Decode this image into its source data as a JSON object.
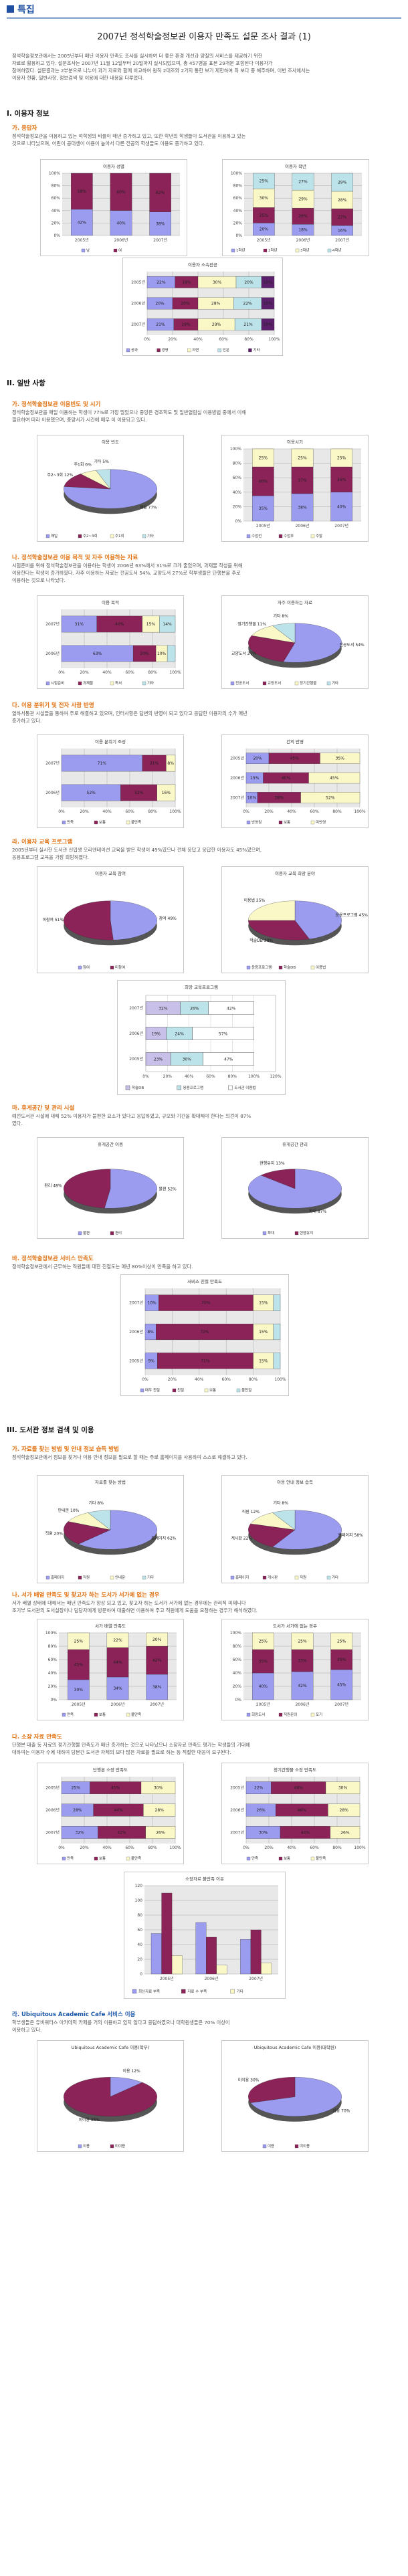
{
  "header": {
    "label": "특집",
    "color": "#1e4fa0"
  },
  "title": "2007년 정석학술정보관 이용자 만족도 설문 조사 결과 (1)",
  "intro": [
    "정석학술정보관에서는 2005년부터 매년 이용자 만족도 조사를 실시하여 더 좋은 환경 개선과 양질의 서비스를 제공하기 위한",
    "자료로 활용하고 있다. 설문조사는 2007년 11월 12일부터 20일까지 실시되었으며, 총 457명을 표본 29개문 포함된다 이용자가",
    "참여하였다. 설문결과는 2부분으로 나누어 과거 자료와 함께 비교하여 원칙 2대조와 2가지 통한 보기 제한하여 최 보다 중 해주하며, 이번 조사에서는",
    "이용자 현황, 일반사항, 정보검색 및 이용에 대한 내용을 다루었다."
  ],
  "sections": [
    {
      "title": "I. 이용자 정보",
      "subs": [
        {
          "title": "가. 응답자",
          "text": [
            "정석학술정보관을 이용하고 있는 여학생의 비율이 매년 증가하고 있고, 또한 학년의 학생들이 도서관을 이용하고 있는",
            "것으로 나타났으며, 어린이 공대생이 이용이 높아서 다른 전공의 학생들도 이용도 증가하고 있다."
          ]
        }
      ]
    },
    {
      "title": "II. 일반 사항",
      "subs": [
        {
          "title": "가. 정석학술정보관 이용빈도 및 시기",
          "text": [
            "정석학술정보관을 매일 이용하는 학생이 77%로 가장 많았으나 중앙은 경조학도 및 일반열람실 이용방법 중에서 이해",
            "필요하여 따라 이용했으며, 중앙서가 시간에 매우 이 이용되고 있다."
          ]
        },
        {
          "title": "나. 정석학술정보관 이용 목적 및 자주 이용하는 자료",
          "text": [
            "시험준비를 위해 정석학술정보관을 이용하는 학생이 2006년 63%에서 31%로 크게 줄었으며, 과제물 작성을 위해",
            "이용한다는 학생이 증가하였다. 자주 이용하는 자료는 전공도서 54%, 교양도서 27%로 학부생들은 단행본을 주로",
            "이용하는 것으로 나타났다."
          ]
        },
        {
          "title": "다. 이용 분위기 및 전자 사람 반영",
          "text": [
            "열하서통관 시설들을 통하여 주로 해결하고 있으며, 인터사항은 답변의 반영이 되고 있다고 응답한 이용자의 수가 매년",
            "증가하고 있다."
          ]
        },
        {
          "title": "라. 이용자 교육 프로그램",
          "text": [
            "2005년부터 실시한 도서관 신입생 오리엔테이션 교육을 받은 학생이 49%였으나 전체 응답고 응답한 이용자도 45%였으며,",
            "응용프로그램 교육을 가장 희망하였다."
          ]
        },
        {
          "title": "마. 휴게공간 및 관리 시설",
          "text": [
            "예전도서관 시설에 대해 52% 이용자가 불편한 요소가 있다고 응답하였고, 규모와 기간을 확대해야 한다는 의견이 87%",
            "였다."
          ]
        },
        {
          "title": "바. 정석학술정보관 서비스 만족도",
          "text": [
            "정석학술정보관에서 근무하는 직원들에 대한 친절도는 매년 80%이상이 만족을 하고 있다."
          ]
        }
      ]
    },
    {
      "title": "III. 도서관 정보 검색 및 이용",
      "subs": [
        {
          "title": "가. 자료를 찾는 방법 및 안내 정보 습득 방법",
          "text": [
            "정석학술정보관에서 정보를 찾거나 이용 안내 정보를 필요로 할 때는 주로 홈페이지를 사용하여 스스로 해결하고 있다."
          ]
        },
        {
          "title": "나. 서가 배열 만족도 및 찾고자 하는 도서가 서가에 없는 경우",
          "text": [
            "서가 배열 상태에 대해서는 매년 만족도가 향상 되고 있고, 찾고자 하는 도서가 서가에 없는 경우에는 관리직 미제니다",
            "조기부 도서관의 도서실장이나 담당자에게 방문하여 대출하면 이용하여 주고 직원에게 도움을 요청하는 경우가 해석하였다."
          ]
        },
        {
          "title": "다. 소장 자료 만족도",
          "text": [
            "단행본 대출 등 자료의 정기간행물 만족도가 매년 증가하는 것으로 나타났으나 소장자료 만족도 평가는 학생들의 기대에",
            "대하여는 이용자 수에 대하여 당분간 도서관 자체의 보다 많은 자료를 필요로 하는 등 적절한 대응이 요구된다."
          ]
        },
        {
          "title": "라. Ubiquitous Academic Cafe 서비스 이용",
          "text": [
            "학부생들은 유비쿼터스 아카데믹 카페를 거의 이용하고 있지 않다고 응답하였으나 대학원생들은 70% 이상이",
            "이용하고 있다."
          ]
        }
      ]
    }
  ],
  "charts": {
    "c1": {
      "title": "이용자 성별",
      "ylabels": [
        "100%",
        "80%",
        "60%",
        "40%",
        "20%",
        "0%"
      ]
    },
    "c2": {
      "title": "이용자 학년",
      "ylabels": [
        "100%",
        "80%",
        "60%",
        "40%",
        "20%",
        "0%"
      ]
    },
    "c3": {
      "title": "이용자 소속전공"
    },
    "c4": {
      "title": "이용 빈도"
    },
    "c5": {
      "title": "이용시기"
    },
    "c6": {
      "title": "이용 목적"
    },
    "c7": {
      "title": "자주 이용하는 자료"
    },
    "c8": {
      "title": "이용 분위기 조성"
    },
    "c9": {
      "title": "건의 반영"
    },
    "c10": {
      "title": "이용자 교육 참여"
    },
    "c11": {
      "title": "이용자 교육 희망 분야"
    },
    "c12": {
      "title": "희망 교육프로그램"
    },
    "c13": {
      "title": "휴게공간 이용"
    },
    "c14": {
      "title": "휴게공간 관리"
    },
    "c15": {
      "title": "서비스 친절 만족도"
    },
    "c16": {
      "title": "자료를 찾는 방법"
    },
    "c17": {
      "title": "이용 안내 정보 습득"
    },
    "c18": {
      "title": "서가 배열 만족도"
    },
    "c19": {
      "title": "도서가 서가에 없는 경우"
    },
    "c20": {
      "title": "단행본 소장 만족도"
    },
    "c21": {
      "title": "정기간행물 소장 만족도"
    },
    "c22": {
      "title": "소장자료 불만족 이유"
    },
    "c23": {
      "title": "Ubiquitous Academic Cafe 이용(학부)"
    },
    "c24": {
      "title": "Ubiquitous Academic Cafe 이용(대학원)"
    }
  },
  "years": [
    "2005년",
    "2006년",
    "2007년"
  ],
  "chart_data": {
    "type": "bar",
    "title": "희망 교육프로그램",
    "categories": [
      "2007년",
      "2006년",
      "2005년"
    ],
    "series": [
      {
        "name": "학술DB",
        "values": [
          32,
          19,
          23
        ]
      },
      {
        "name": "응용프로그램",
        "values": [
          26,
          24,
          30
        ]
      },
      {
        "name": "도서관 이용법",
        "values": [
          42,
          57,
          47
        ]
      }
    ],
    "xlabel": "",
    "ylabel": "",
    "xlim": [
      0,
      120
    ],
    "xticks": [
      "0%",
      "20%",
      "40%",
      "60%",
      "80%",
      "100%",
      "120%"
    ],
    "legend": "bottom"
  },
  "c22data": {
    "categories": [
      "2005년",
      "2006년",
      "2007년"
    ],
    "yticks": [
      "0",
      "20",
      "40",
      "60",
      "80",
      "100",
      "120"
    ],
    "series": [
      {
        "name": "최신자료 부족",
        "values": [
          55,
          70,
          47
        ]
      },
      {
        "name": "자료 수 부족",
        "values": [
          110,
          50,
          60
        ]
      },
      {
        "name": "기타",
        "values": [
          25,
          12,
          15
        ]
      }
    ]
  },
  "colors": {
    "s1": "#9b9bf0",
    "s2": "#8b2258",
    "s3": "#fbf8c8",
    "s4": "#bde3ea",
    "s5": "#5c1f6b",
    "s6": "#ee8080",
    "s7": "#1f5fba",
    "s8": "#c8c0e8"
  }
}
